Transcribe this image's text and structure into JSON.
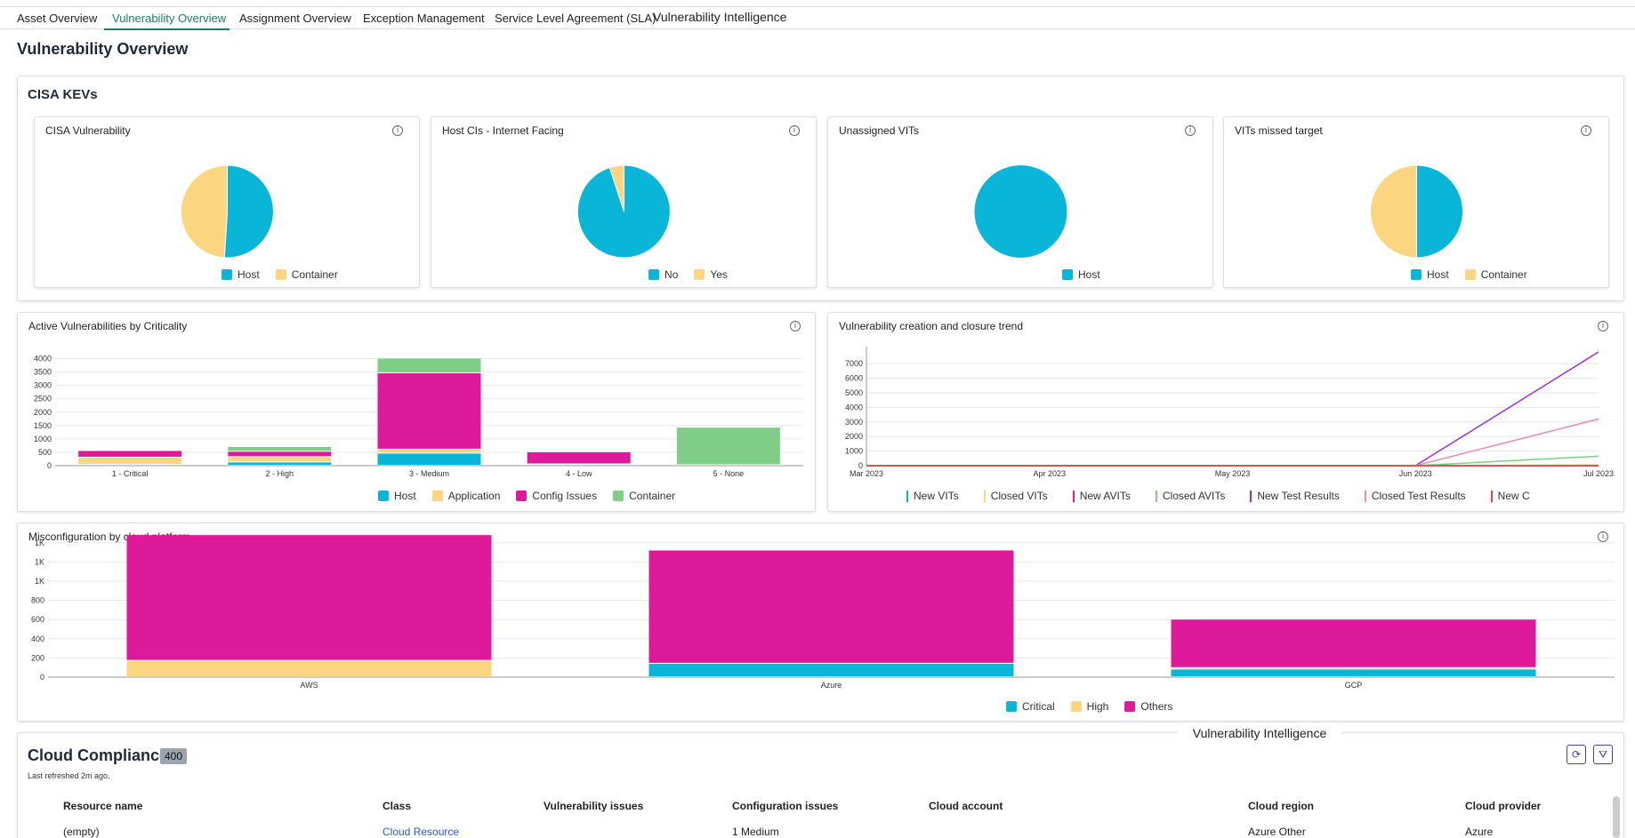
{
  "tabs": [
    "Asset Overview",
    "Vulnerability Overview",
    "Assignment Overview",
    "Exception Management",
    "Service Level Agreement (SLA)",
    "Vulnerability Intelligence"
  ],
  "page_title": "Vulnerability Overview",
  "cisa_section_title": "CISA KEVs",
  "info_glyph": "i",
  "colors": {
    "host": "#0ab6d8",
    "application": "#fcd581",
    "config": "#dc1a9a",
    "container": "#7fcd86",
    "accent": "#1a7f64"
  },
  "cards": [
    {
      "title": "CISA Vulnerability",
      "legend": [
        "Host",
        "Container"
      ]
    },
    {
      "title": "Host CIs - Internet Facing",
      "legend": [
        "No",
        "Yes"
      ]
    },
    {
      "title": "Unassigned VITs",
      "legend": [
        "Host"
      ]
    },
    {
      "title": "VITs missed target",
      "legend": [
        "Host",
        "Container"
      ]
    }
  ],
  "criticality": {
    "title": "Active Vulnerabilities by Criticality",
    "legend": [
      "Host",
      "Application",
      "Config Issues",
      "Container"
    ]
  },
  "trend": {
    "title": "Vulnerability creation and closure trend",
    "legend": [
      "New VITs",
      "Closed VITs",
      "New AVITs",
      "Closed AVITs",
      "New Test Results",
      "Closed Test Results",
      "New C"
    ]
  },
  "misconfig": {
    "title": "Misconfiguration by cloud platform",
    "legend": [
      "Critical",
      "High",
      "Others"
    ]
  },
  "chart_data": [
    {
      "type": "pie",
      "title": "CISA Vulnerability",
      "categories": [
        "Host",
        "Container"
      ],
      "values": [
        51,
        49
      ]
    },
    {
      "type": "pie",
      "title": "Host CIs - Internet Facing",
      "categories": [
        "No",
        "Yes"
      ],
      "values": [
        95,
        5
      ]
    },
    {
      "type": "pie",
      "title": "Unassigned VITs",
      "categories": [
        "Host"
      ],
      "values": [
        100
      ]
    },
    {
      "type": "pie",
      "title": "VITs missed target",
      "categories": [
        "Host",
        "Container"
      ],
      "values": [
        50,
        50
      ]
    },
    {
      "type": "bar",
      "stacked": true,
      "title": "Active Vulnerabilities by Criticality",
      "categories": [
        "1 - Critical",
        "2 - High",
        "3 - Medium",
        "4 - Low",
        "5 - None"
      ],
      "yticks": [
        "0",
        "500",
        "1000",
        "1500",
        "2000",
        "2500",
        "3000",
        "3500",
        "4000"
      ],
      "ylim": [
        0,
        4000
      ],
      "series": [
        {
          "name": "Host",
          "values": [
            30,
            120,
            450,
            20,
            20
          ]
        },
        {
          "name": "Application",
          "values": [
            270,
            200,
            150,
            30,
            0
          ]
        },
        {
          "name": "Config Issues",
          "values": [
            250,
            200,
            2850,
            450,
            0
          ]
        },
        {
          "name": "Container",
          "values": [
            0,
            180,
            550,
            0,
            1400
          ]
        }
      ]
    },
    {
      "type": "line",
      "title": "Vulnerability creation and closure trend",
      "x": [
        "Mar 2023",
        "Apr 2023",
        "May 2023",
        "Jun 2023",
        "Jul 2023"
      ],
      "yticks": [
        "0",
        "1000",
        "2000",
        "3000",
        "4000",
        "5000",
        "6000",
        "7000"
      ],
      "ylim": [
        0,
        7800
      ],
      "series": [
        {
          "name": "New VITs",
          "values": [
            0,
            0,
            0,
            0,
            0
          ]
        },
        {
          "name": "Closed VITs",
          "values": [
            0,
            0,
            0,
            0,
            50
          ]
        },
        {
          "name": "New AVITs",
          "values": [
            0,
            0,
            0,
            0,
            0
          ]
        },
        {
          "name": "Closed AVITs",
          "values": [
            0,
            0,
            0,
            0,
            650
          ]
        },
        {
          "name": "New Test Results",
          "values": [
            0,
            0,
            0,
            0,
            7800
          ]
        },
        {
          "name": "Closed Test Results",
          "values": [
            0,
            0,
            0,
            0,
            3200
          ]
        },
        {
          "name": "New C",
          "values": [
            0,
            0,
            0,
            0,
            0
          ]
        }
      ]
    },
    {
      "type": "bar",
      "stacked": true,
      "title": "Misconfiguration by cloud platform",
      "categories": [
        "AWS",
        "Azure",
        "GCP"
      ],
      "yticks": [
        "0",
        "200",
        "400",
        "600",
        "800",
        "1K",
        "1K",
        "1K"
      ],
      "ylim": [
        0,
        1500
      ],
      "series": [
        {
          "name": "Critical",
          "values": [
            0,
            140,
            80
          ]
        },
        {
          "name": "High",
          "values": [
            170,
            0,
            15
          ]
        },
        {
          "name": "Others",
          "values": [
            1310,
            1180,
            505
          ]
        }
      ]
    }
  ],
  "cloud_compliance": {
    "title": "Cloud Compliance",
    "count": "400",
    "refreshed": "Last refreshed 2m ago.",
    "tooltip": "Vulnerability Intelligence",
    "refresh_icon": "⟳",
    "filter_icon": "⛛",
    "columns": [
      "Resource name",
      "Class",
      "Vulnerability issues",
      "Configuration issues",
      "Cloud account",
      "Cloud region",
      "Cloud provider"
    ],
    "rows": [
      [
        "(empty)",
        "Cloud Resource",
        "",
        "1 Medium",
        "",
        "Azure Other",
        "Azure"
      ]
    ]
  }
}
